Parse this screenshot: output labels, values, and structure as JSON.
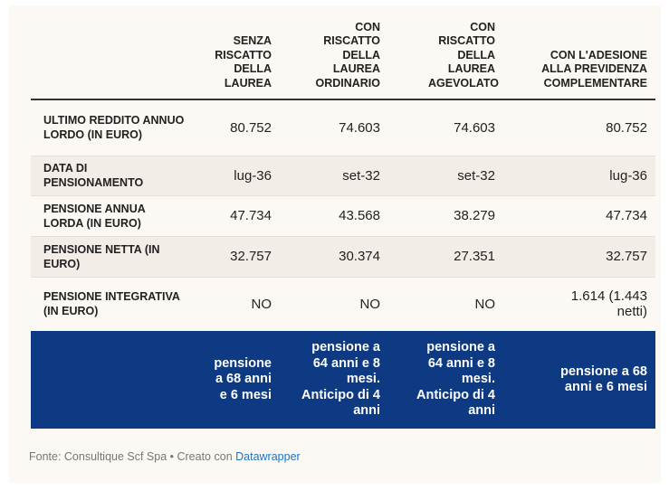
{
  "columns": [
    "",
    "SENZA RISCATTO DELLA LAUREA",
    "CON RISCATTO DELLA LAUREA ORDINARIO",
    "CON RISCATTO DELLA LAUREA AGEVOLATO",
    "CON L'ADESIONE ALLA PREVIDENZA COMPLEMENTARE"
  ],
  "rows": [
    {
      "label": "ULTIMO REDDITO ANNUO LORDO (IN EURO)",
      "values": [
        "80.752",
        "74.603",
        "74.603",
        "80.752"
      ]
    },
    {
      "label": "DATA DI PENSIONAMENTO",
      "values": [
        "lug-36",
        "set-32",
        "set-32",
        "lug-36"
      ]
    },
    {
      "label": "PENSIONE ANNUA LORDA (IN EURO)",
      "values": [
        "47.734",
        "43.568",
        "38.279",
        "47.734"
      ]
    },
    {
      "label": "PENSIONE NETTA (IN EURO)",
      "values": [
        "32.757",
        "30.374",
        "27.351",
        "32.757"
      ]
    },
    {
      "label": "PENSIONE INTEGRATIVA (IN EURO)",
      "values": [
        "NO",
        "NO",
        "NO",
        "1.614 (1.443 netti)"
      ]
    }
  ],
  "summary": {
    "values": [
      "pensione a 68 anni e 6 mesi",
      "pensione a 64 anni e 8 mesi. Anticipo di 4 anni",
      "pensione a 64 anni e 8 mesi. Anticipo di 4 anni",
      "pensione a 68 anni e 6 mesi"
    ]
  },
  "footer": {
    "source": "Fonte: Consultique Scf Spa • Creato con",
    "link": "Datawrapper"
  },
  "colors": {
    "background": "#fcf8f3",
    "row_shade": "#f2ede6",
    "summary_bg": "#0d3a82",
    "link": "#1a73c8"
  }
}
